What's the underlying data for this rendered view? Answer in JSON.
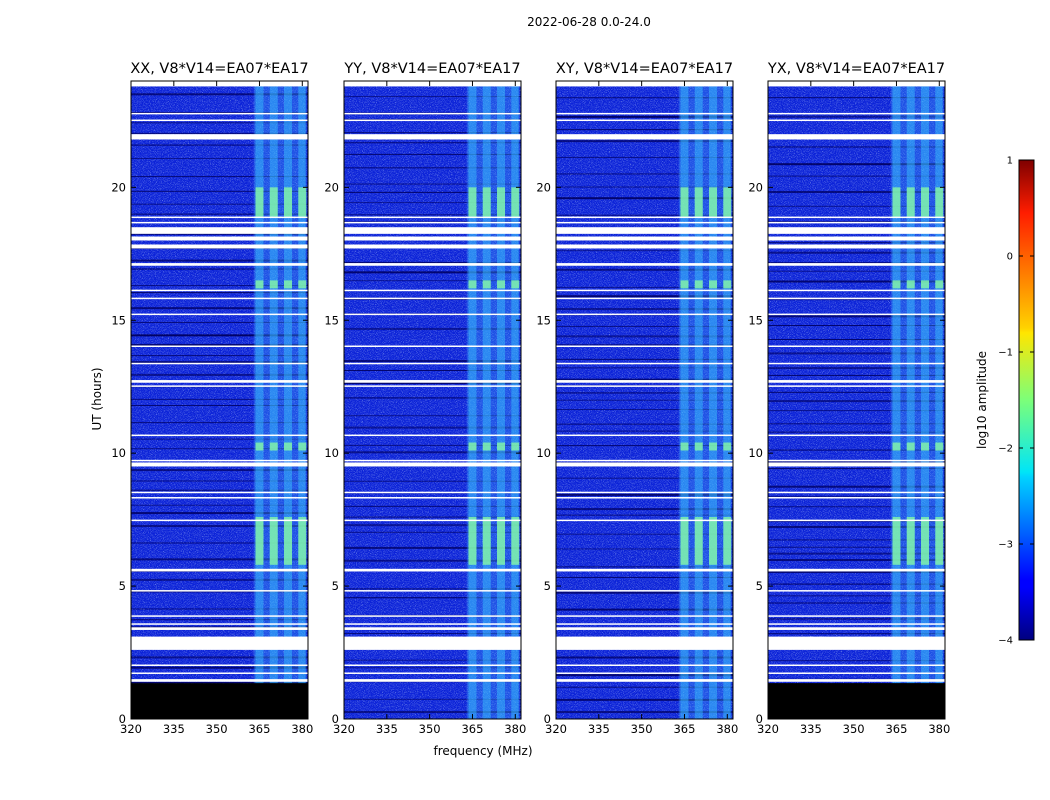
{
  "figure": {
    "suptitle": "2022-06-28 0.0-24.0"
  },
  "chart_data": {
    "type": "heatmap",
    "xlabel": "frequency (MHz)",
    "ylabel": "UT (hours)",
    "xlim": [
      320,
      382
    ],
    "ylim": [
      0,
      24
    ],
    "xticks": [
      320,
      335,
      350,
      365,
      380
    ],
    "yticks": [
      0,
      5,
      10,
      15,
      20
    ],
    "panels": [
      {
        "title": "XX, V8*V14=EA07*EA17",
        "zero_block": [
          0,
          1.35
        ]
      },
      {
        "title": "YY, V8*V14=EA07*EA17",
        "zero_block": null
      },
      {
        "title": "XY, V8*V14=EA07*EA17",
        "zero_block": null
      },
      {
        "title": "YX, V8*V14=EA07*EA17",
        "zero_block": [
          0,
          1.35
        ]
      }
    ],
    "data_start_hour": 0,
    "data_end_hour": 23.8,
    "rfi_band_mhz": [
      363,
      381
    ],
    "rfi_channels_mhz": [
      365,
      370,
      375,
      380
    ],
    "flagged_hours": [
      [
        21.8,
        22.0
      ],
      [
        22.5,
        22.55
      ],
      [
        22.75,
        22.8
      ],
      [
        18.85,
        18.9
      ],
      [
        18.65,
        18.7
      ],
      [
        18.25,
        18.5
      ],
      [
        18.0,
        18.15
      ],
      [
        17.7,
        17.85
      ],
      [
        17.05,
        17.15
      ],
      [
        16.1,
        16.15
      ],
      [
        15.8,
        15.85
      ],
      [
        15.2,
        15.25
      ],
      [
        14.0,
        14.05
      ],
      [
        13.35,
        13.4
      ],
      [
        12.65,
        12.75
      ],
      [
        12.5,
        12.55
      ],
      [
        10.65,
        10.7
      ],
      [
        9.5,
        9.65
      ],
      [
        9.7,
        9.75
      ],
      [
        8.5,
        8.55
      ],
      [
        8.3,
        8.35
      ],
      [
        7.45,
        7.5
      ],
      [
        5.55,
        5.65
      ],
      [
        4.8,
        4.85
      ],
      [
        3.85,
        3.9
      ],
      [
        3.55,
        3.6
      ],
      [
        3.35,
        3.45
      ],
      [
        2.6,
        3.1
      ],
      [
        2.0,
        2.05
      ],
      [
        1.7,
        1.75
      ],
      [
        1.4,
        1.5
      ]
    ],
    "high_rfi_hours": [
      [
        18.9,
        20.0
      ],
      [
        5.8,
        7.6
      ],
      [
        10.1,
        10.4
      ],
      [
        16.2,
        16.5
      ]
    ],
    "colorbar": {
      "label": "log10 amplitude",
      "min": -4,
      "max": 1,
      "ticks": [
        1,
        0,
        -1,
        -2,
        -3,
        -4
      ],
      "tick_labels": [
        "1",
        "0",
        "−1",
        "−2",
        "−3",
        "−4"
      ],
      "colormap": "jet"
    }
  }
}
